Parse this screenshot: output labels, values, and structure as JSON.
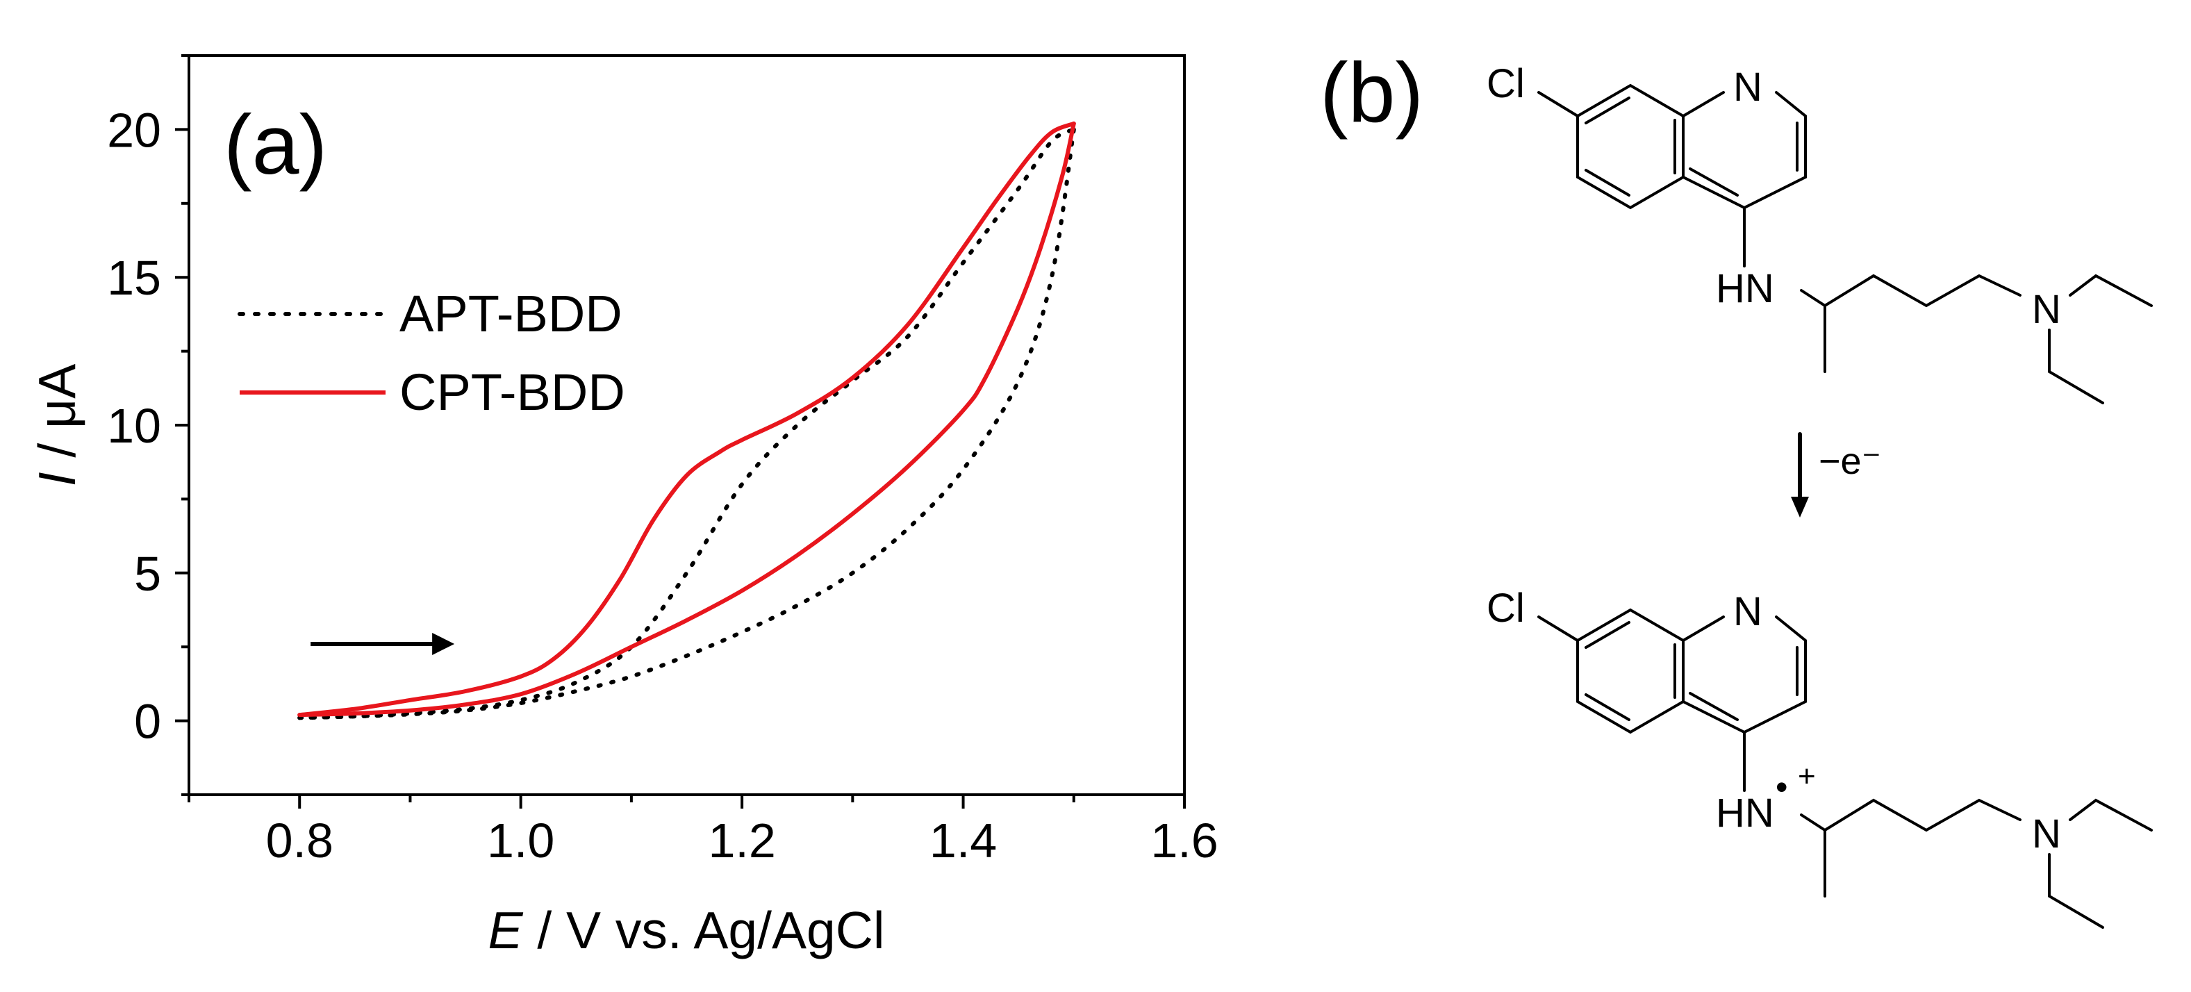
{
  "chart_data": {
    "type": "line",
    "panel_label": "(a)",
    "xlabel_var": "E",
    "xlabel_rest": " / V vs. Ag/AgCl",
    "ylabel_var": "I",
    "ylabel_rest": " / μA",
    "xlim": [
      0.7,
      1.6
    ],
    "ylim": [
      -2.5,
      22.5
    ],
    "xticks": [
      0.8,
      1.0,
      1.2,
      1.4,
      1.6
    ],
    "xtick_labels": [
      "0.8",
      "1.0",
      "1.2",
      "1.4",
      "1.6"
    ],
    "yticks": [
      0,
      5,
      10,
      15,
      20
    ],
    "ytick_labels": [
      "0",
      "5",
      "10",
      "15",
      "20"
    ],
    "sweep_arrow": {
      "from": [
        0.81,
        2.6
      ],
      "to": [
        0.94,
        2.6
      ]
    },
    "series": [
      {
        "name": "APT-BDD",
        "color": "#000000",
        "style": "dotted",
        "forward": {
          "x": [
            0.8,
            0.85,
            0.9,
            0.95,
            1.0,
            1.05,
            1.1,
            1.15,
            1.2,
            1.25,
            1.3,
            1.35,
            1.4,
            1.45,
            1.48,
            1.5
          ],
          "y": [
            0.1,
            0.15,
            0.25,
            0.4,
            0.7,
            1.3,
            2.5,
            5.0,
            8.0,
            10.0,
            11.5,
            13.0,
            15.5,
            18.0,
            19.6,
            20.0
          ]
        },
        "reverse": {
          "x": [
            1.5,
            1.48,
            1.45,
            1.4,
            1.35,
            1.3,
            1.25,
            1.2,
            1.15,
            1.1,
            1.05,
            1.0,
            0.95,
            0.9,
            0.85,
            0.8
          ],
          "y": [
            20.0,
            15.0,
            11.5,
            8.5,
            6.5,
            5.0,
            3.9,
            3.0,
            2.2,
            1.5,
            1.0,
            0.6,
            0.35,
            0.22,
            0.15,
            0.1
          ]
        }
      },
      {
        "name": "CPT-BDD",
        "color": "#e8161d",
        "style": "solid",
        "forward": {
          "x": [
            0.8,
            0.85,
            0.9,
            0.95,
            1.0,
            1.03,
            1.06,
            1.09,
            1.12,
            1.15,
            1.18,
            1.2,
            1.25,
            1.3,
            1.35,
            1.4,
            1.43,
            1.46,
            1.48,
            1.5
          ],
          "y": [
            0.2,
            0.4,
            0.7,
            1.0,
            1.5,
            2.1,
            3.2,
            4.8,
            6.8,
            8.3,
            9.1,
            9.5,
            10.4,
            11.6,
            13.4,
            16.0,
            17.6,
            19.1,
            19.9,
            20.2
          ]
        },
        "reverse": {
          "x": [
            1.5,
            1.49,
            1.47,
            1.45,
            1.42,
            1.4,
            1.35,
            1.3,
            1.25,
            1.2,
            1.15,
            1.1,
            1.05,
            1.0,
            0.95,
            0.9,
            0.85,
            0.8
          ],
          "y": [
            20.2,
            18.5,
            16.0,
            14.0,
            11.6,
            10.5,
            8.6,
            7.0,
            5.6,
            4.4,
            3.4,
            2.5,
            1.6,
            0.9,
            0.55,
            0.35,
            0.25,
            0.2
          ]
        }
      }
    ]
  },
  "scheme": {
    "panel_label": "(b)",
    "atoms": {
      "cl": "Cl",
      "n": "N",
      "hn": "HN",
      "radical_dot": "•",
      "cation_sign": "+"
    },
    "reaction_label": "−e⁻"
  }
}
